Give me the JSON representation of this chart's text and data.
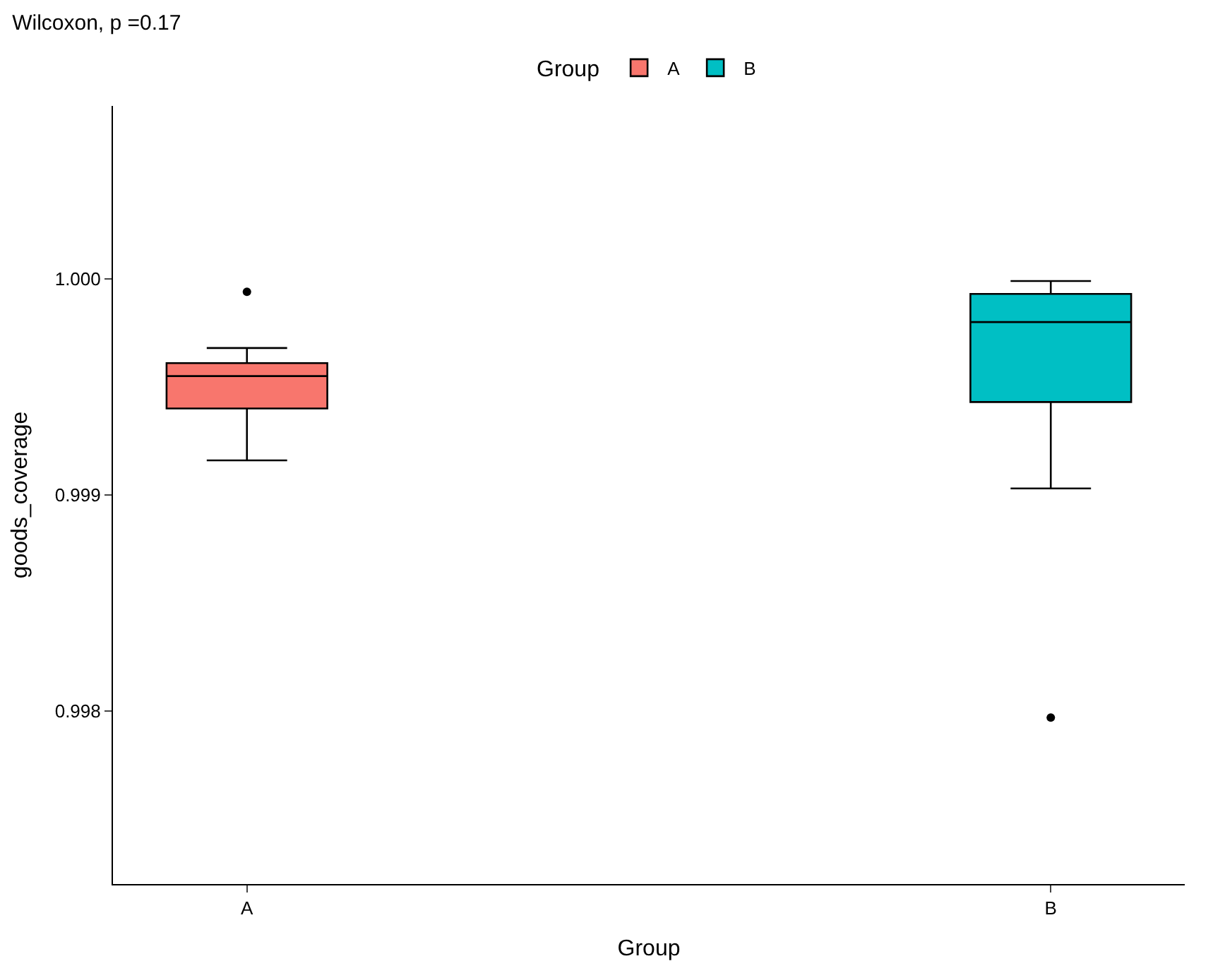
{
  "chart_data": {
    "type": "box",
    "title": "Wilcoxon, p =0.17",
    "xlabel": "Group",
    "ylabel": "goods_coverage",
    "legend_title": "Group",
    "categories": [
      "A",
      "B"
    ],
    "series": [
      {
        "name": "A",
        "color": "#f8766d",
        "boxes": [
          {
            "low": 0.99916,
            "q1": 0.9994,
            "median": 0.99955,
            "q3": 0.99961,
            "high": 0.99968,
            "outliers": [
              0.99994
            ]
          },
          null
        ]
      },
      {
        "name": "B",
        "color": "#00bfc4",
        "boxes": [
          null,
          {
            "low": 0.99903,
            "q1": 0.99943,
            "median": 0.9998,
            "q3": 0.99993,
            "high": 0.99999,
            "outliers": [
              0.99797
            ]
          }
        ]
      }
    ],
    "ylim": [
      0.9972,
      1.0008
    ],
    "yticks": [
      0.998,
      0.999,
      {
        "value": 1.0,
        "label": "1.000"
      }
    ],
    "legend": "top"
  }
}
